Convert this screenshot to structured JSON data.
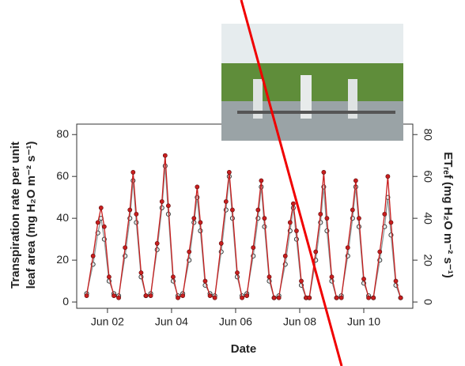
{
  "chart_data": {
    "type": "scatter",
    "xlabel": "Date",
    "ylabel": [
      "Transpiration rate per unit",
      "leaf area (mg H₂O m⁻² s⁻¹)"
    ],
    "y2label": "ETᵣₑf (mg H₂O m⁻² s⁻¹)",
    "x": [
      1.35,
      1.55,
      1.7,
      1.8,
      1.9,
      2.05,
      2.2,
      2.35,
      2.55,
      2.7,
      2.8,
      2.9,
      3.05,
      3.2,
      3.35,
      3.55,
      3.7,
      3.8,
      3.9,
      4.05,
      4.2,
      4.35,
      4.55,
      4.7,
      4.8,
      4.9,
      5.05,
      5.2,
      5.35,
      5.55,
      5.7,
      5.8,
      5.9,
      6.05,
      6.2,
      6.35,
      6.55,
      6.7,
      6.8,
      6.9,
      7.05,
      7.2,
      7.35,
      7.55,
      7.7,
      7.8,
      7.9,
      8.05,
      8.2,
      8.3,
      8.5,
      8.65,
      8.75,
      8.85,
      9.0,
      9.15,
      9.3,
      9.5,
      9.65,
      9.75,
      9.85,
      10.0,
      10.15,
      10.3,
      10.5,
      10.65,
      10.75,
      10.85,
      11.0,
      11.15
    ],
    "series": [
      {
        "color": "#8a9a9a",
        "axis": "y",
        "values": [
          4,
          18,
          33,
          40,
          30,
          10,
          4,
          3,
          22,
          40,
          58,
          38,
          12,
          3,
          4,
          25,
          45,
          65,
          42,
          10,
          3,
          4,
          20,
          38,
          50,
          34,
          8,
          4,
          3,
          24,
          44,
          60,
          40,
          12,
          3,
          4,
          22,
          40,
          55,
          36,
          10,
          2,
          3,
          18,
          34,
          45,
          30,
          8,
          2,
          2,
          20,
          38,
          55,
          34,
          10,
          2,
          3,
          22,
          40,
          55,
          36,
          9,
          3,
          2,
          20,
          36,
          50,
          32,
          8,
          2
        ]
      },
      {
        "color": "#c81e1e",
        "axis": "y2",
        "values": [
          3,
          22,
          38,
          45,
          36,
          12,
          3,
          2,
          26,
          44,
          62,
          42,
          14,
          3,
          3,
          28,
          48,
          70,
          46,
          12,
          2,
          3,
          24,
          40,
          55,
          38,
          10,
          3,
          2,
          28,
          48,
          62,
          44,
          14,
          2,
          3,
          26,
          44,
          58,
          40,
          12,
          2,
          2,
          22,
          38,
          47,
          34,
          10,
          2,
          2,
          24,
          42,
          62,
          40,
          12,
          2,
          2,
          26,
          44,
          58,
          40,
          11,
          2,
          2,
          24,
          42,
          60,
          38,
          10,
          2
        ]
      }
    ],
    "xlim": [
      1.04,
      11.53
    ],
    "xticks": [
      {
        "value": 2,
        "label": "Jun 02"
      },
      {
        "value": 4,
        "label": "Jun 04"
      },
      {
        "value": 6,
        "label": "Jun 06"
      },
      {
        "value": 8,
        "label": "Jun 08"
      },
      {
        "value": 10,
        "label": "Jun 10"
      }
    ],
    "ylim": [
      -3,
      85
    ],
    "yticks": [
      0,
      20,
      40,
      60,
      80
    ],
    "y2lim": [
      -3,
      85
    ],
    "y2ticks": [
      0,
      20,
      40,
      60,
      80
    ]
  }
}
